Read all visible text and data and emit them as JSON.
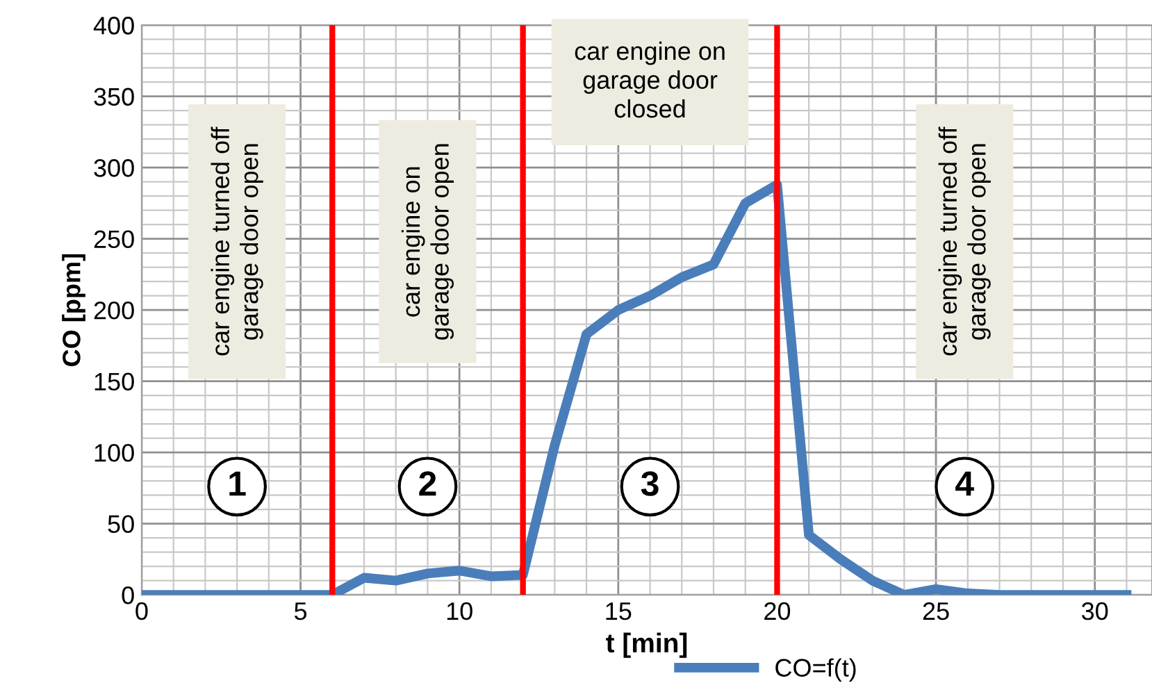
{
  "chart_data": {
    "type": "line",
    "xlabel": "t [min]",
    "ylabel": "CO [ppm]",
    "x": [
      0,
      1,
      2,
      3,
      4,
      5,
      6,
      7,
      8,
      9,
      10,
      11,
      12,
      13,
      14,
      15,
      16,
      17,
      18,
      19,
      20,
      21,
      22,
      23,
      24,
      25,
      26,
      27,
      28,
      29,
      30,
      31
    ],
    "series": [
      {
        "name": "CO=f(t)",
        "color": "#4a7ebb",
        "values": [
          0,
          0,
          0,
          0,
          0,
          0,
          0,
          12,
          10,
          15,
          17,
          13,
          14,
          105,
          183,
          200,
          210,
          223,
          232,
          275,
          288,
          42,
          25,
          10,
          0,
          4,
          1,
          0,
          0,
          0,
          0,
          0
        ]
      }
    ],
    "xlim": [
      0,
      31.8
    ],
    "xticks": [
      0,
      5,
      10,
      15,
      20,
      25,
      30
    ],
    "ylim": [
      0,
      400
    ],
    "yticks": [
      0,
      50,
      100,
      150,
      200,
      250,
      300,
      350,
      400
    ],
    "ref_lines": [
      {
        "axis": "x",
        "value": 6,
        "color": "#ff0000"
      },
      {
        "axis": "x",
        "value": 12,
        "color": "#ff0000"
      },
      {
        "axis": "x",
        "value": 20,
        "color": "#ff0000"
      }
    ],
    "annotations": [
      "car engine turned off\ngarage door open",
      "car engine on\ngarage door open",
      "car engine on\ngarage door\nclosed",
      "car engine turned off\ngarage door open",
      "1",
      "2",
      "3",
      "4"
    ],
    "grid": true,
    "legend": "bottom",
    "marker": "none",
    "line_style": "solid"
  }
}
